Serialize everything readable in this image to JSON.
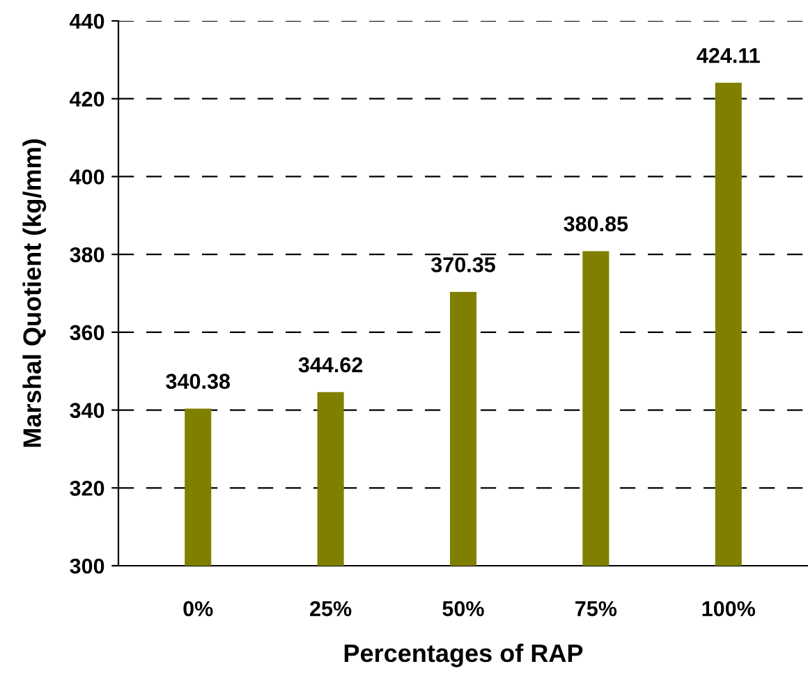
{
  "chart_data": {
    "type": "bar",
    "xlabel": "Percentages of RAP",
    "ylabel": "Marshal Quotient (kg/mm)",
    "categories": [
      "0%",
      "25%",
      "50%",
      "75%",
      "100%"
    ],
    "values": [
      340.38,
      344.62,
      370.35,
      380.85,
      424.11
    ],
    "color": "#808000",
    "ylim": [
      300,
      440
    ],
    "yticks": [
      300,
      320,
      340,
      360,
      380,
      400,
      420,
      440
    ],
    "grid": "y",
    "data_labels": true
  }
}
